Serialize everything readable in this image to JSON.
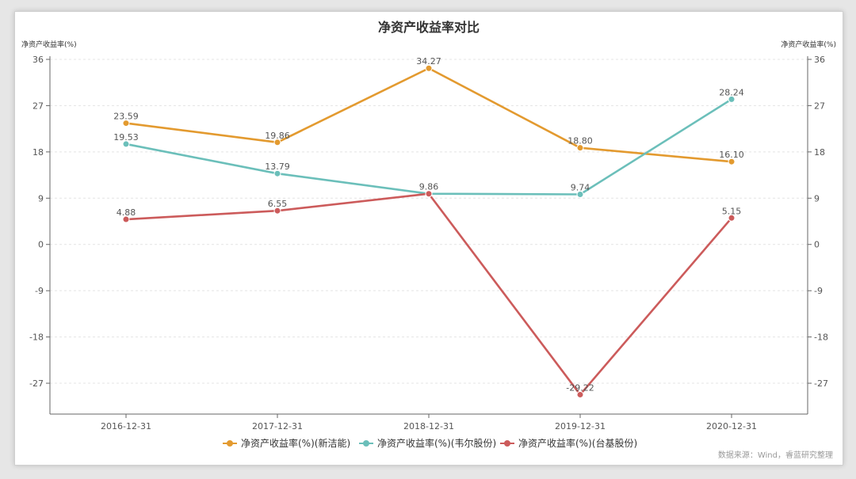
{
  "chart_data": {
    "type": "line",
    "title": "净资产收益率对比",
    "ylabel_left": "净资产收益率(%)",
    "ylabel_right": "净资产收益率(%)",
    "categories": [
      "2016-12-31",
      "2017-12-31",
      "2018-12-31",
      "2019-12-31",
      "2020-12-31"
    ],
    "ylim": [
      -33,
      36
    ],
    "yticks": [
      36,
      27,
      18,
      9,
      0,
      -9,
      -18,
      -27
    ],
    "grid": true,
    "legend_position": "bottom",
    "series": [
      {
        "name": "净资产收益率(%)(新洁能)",
        "color": "#e39a2f",
        "values": [
          23.59,
          19.86,
          34.27,
          18.8,
          16.1
        ],
        "labels": [
          "23.59",
          "19.86",
          "34.27",
          "18.80",
          "16.10"
        ]
      },
      {
        "name": "净资产收益率(%)(韦尔股份)",
        "color": "#6bbfba",
        "values": [
          19.53,
          13.79,
          9.86,
          9.74,
          28.24
        ],
        "labels": [
          "19.53",
          "13.79",
          "9.86",
          "9.74",
          "28.24"
        ]
      },
      {
        "name": "净资产收益率(%)(台基股份)",
        "color": "#cc5b5b",
        "values": [
          4.88,
          6.55,
          9.86,
          -29.22,
          5.15
        ],
        "labels": [
          "4.88",
          "6.55",
          "",
          "-29.22",
          "5.15"
        ]
      }
    ],
    "source": "数据来源：Wind，睿蓝研究整理"
  }
}
